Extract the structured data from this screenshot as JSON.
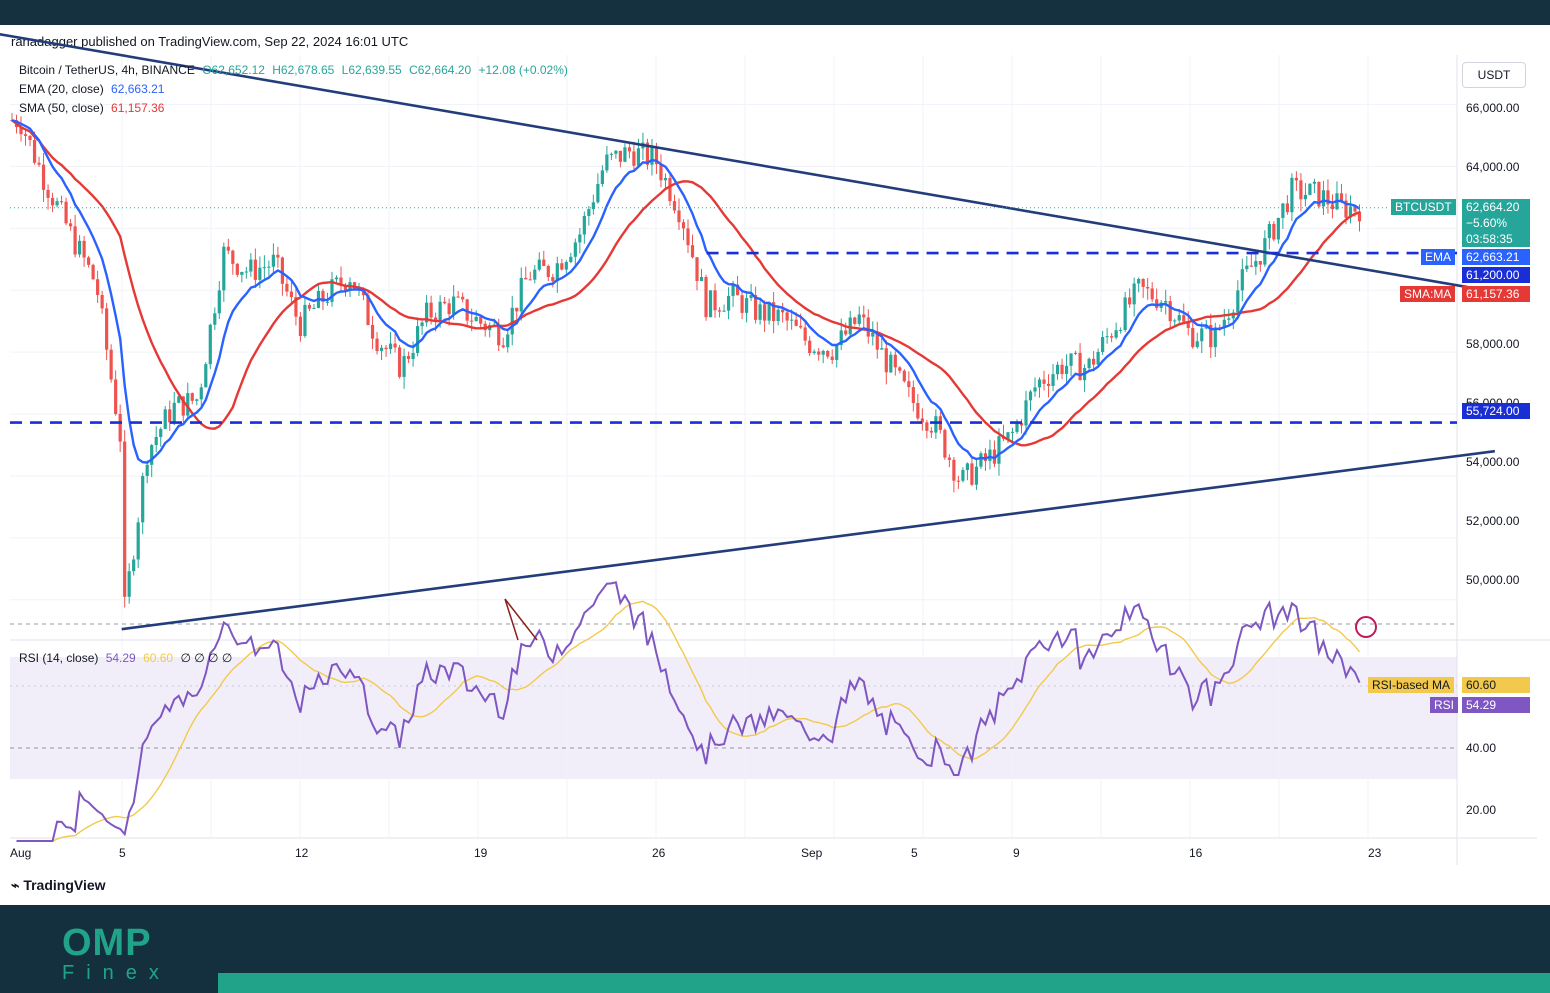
{
  "header": {
    "publisher": "ranadagger published on TradingView.com, Sep 22, 2024 16:01 UTC"
  },
  "legend": {
    "symbol": "Bitcoin / TetherUS, 4h, BINANCE",
    "open": "O62,652.12",
    "high": "H62,678.65",
    "low": "L62,639.55",
    "close": "C62,664.20",
    "change": "+12.08 (+0.02%)",
    "ema_label": "EMA (20, close)",
    "ema_value": "62,663.21",
    "sma_label": "SMA (50, close)",
    "sma_value": "61,157.36",
    "rsi_label": "RSI (14, close)",
    "rsi_value": "54.29",
    "rsi_ma_value": "60.60",
    "rsi_extra": "∅ ∅ ∅ ∅"
  },
  "currency": "USDT",
  "price_tags": {
    "btc_label": "BTCUSDT",
    "btc_price": "62,664.20",
    "btc_change": "−5.60%",
    "btc_countdown": "03:58:35",
    "ema_label": "EMA",
    "ema_price": "62,663.21",
    "level_61200": "61,200.00",
    "sma_label": "SMA:MA",
    "sma_price": "61,157.36",
    "level_55724": "55,724.00",
    "rsi_ma_label": "RSI-based MA",
    "rsi_ma_value": "60.60",
    "rsi_label": "RSI",
    "rsi_value": "54.29"
  },
  "colors": {
    "ema": "#2962ff",
    "sma": "#e53935",
    "up": "#26a69a",
    "down": "#ef5350",
    "trendline": "#233d7a",
    "level": "#1a2ed6",
    "rsi": "#7e57c2",
    "rsi_ma": "#f2c94c",
    "brand": "#20a389"
  },
  "chart_data": {
    "type": "candlestick",
    "price_axis_ticks": [
      "66,000.00",
      "64,000.00",
      "58,000.00",
      "56,000.00",
      "54,000.00",
      "52,000.00",
      "50,000.00"
    ],
    "rsi_axis_ticks": [
      "40.00",
      "20.00"
    ],
    "x_ticks": [
      "Aug",
      "5",
      "12",
      "19",
      "26",
      "Sep",
      "5",
      "9",
      "16",
      "23"
    ],
    "ylim": [
      48700,
      67600
    ],
    "horizontal_levels": [
      61200,
      55724
    ],
    "trendlines": [
      {
        "name": "upper",
        "from": [
          "Jul 31",
          68300
        ],
        "to": [
          "Sep 28",
          59950
        ]
      },
      {
        "name": "lower",
        "from": [
          "Aug 5",
          49050
        ],
        "to": [
          "Sep 28",
          54800
        ]
      }
    ],
    "price_path": [
      [
        "Aug 1",
        65500
      ],
      [
        "Aug 2",
        63500
      ],
      [
        "Aug 3",
        61800
      ],
      [
        "Aug 4",
        60200
      ],
      [
        "Aug 5",
        55000
      ],
      [
        "Aug 5",
        49000
      ],
      [
        "Aug 6",
        54800
      ],
      [
        "Aug 7",
        56200
      ],
      [
        "Aug 8",
        56500
      ],
      [
        "Aug 9",
        61200
      ],
      [
        "Aug 10",
        60600
      ],
      [
        "Aug 11",
        60900
      ],
      [
        "Aug 12",
        58900
      ],
      [
        "Aug 13",
        59800
      ],
      [
        "Aug 14",
        60500
      ],
      [
        "Aug 15",
        58500
      ],
      [
        "Aug 16",
        57500
      ],
      [
        "Aug 17",
        59200
      ],
      [
        "Aug 18",
        59600
      ],
      [
        "Aug 19",
        59000
      ],
      [
        "Aug 20",
        58600
      ],
      [
        "Aug 21",
        60500
      ],
      [
        "Aug 22",
        60700
      ],
      [
        "Aug 23",
        61800
      ],
      [
        "Aug 24",
        64100
      ],
      [
        "Aug 25",
        64500
      ],
      [
        "Aug 26",
        64200
      ],
      [
        "Aug 27",
        62500
      ],
      [
        "Aug 28",
        59500
      ],
      [
        "Aug 29",
        59800
      ],
      [
        "Aug 30",
        59300
      ],
      [
        "Aug 31",
        59100
      ],
      [
        "Sep 1",
        58300
      ],
      [
        "Sep 2",
        58100
      ],
      [
        "Sep 3",
        59100
      ],
      [
        "Sep 4",
        57800
      ],
      [
        "Sep 5",
        56500
      ],
      [
        "Sep 6",
        55600
      ],
      [
        "Sep 7",
        53800
      ],
      [
        "Sep 8",
        54500
      ],
      [
        "Sep 9",
        55300
      ],
      [
        "Sep 10",
        57000
      ],
      [
        "Sep 11",
        57600
      ],
      [
        "Sep 12",
        57500
      ],
      [
        "Sep 13",
        58800
      ],
      [
        "Sep 14",
        60000
      ],
      [
        "Sep 15",
        59700
      ],
      [
        "Sep 16",
        58600
      ],
      [
        "Sep 17",
        58500
      ],
      [
        "Sep 18",
        60200
      ],
      [
        "Sep 19",
        61500
      ],
      [
        "Sep 20",
        63200
      ],
      [
        "Sep 21",
        63100
      ],
      [
        "Sep 22",
        62664
      ]
    ],
    "series": [
      {
        "name": "EMA (20, close)",
        "last": 62663.21
      },
      {
        "name": "SMA (50, close)",
        "last": 61157.36
      },
      {
        "name": "RSI (14, close)",
        "last": 54.29
      },
      {
        "name": "RSI-based MA",
        "last": 60.6
      }
    ],
    "rsi_bands": [
      70,
      30
    ]
  }
}
